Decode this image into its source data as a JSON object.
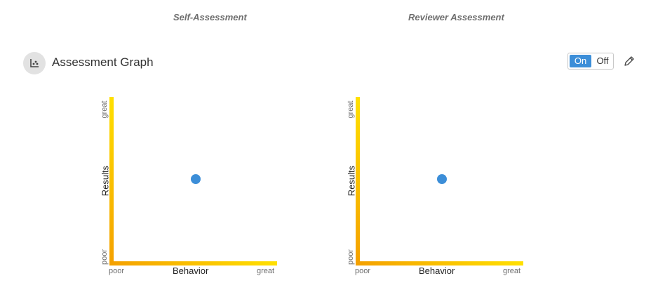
{
  "headers": {
    "self": "Self-Assessment",
    "reviewer": "Reviewer Assessment"
  },
  "section": {
    "title": "Assessment Graph",
    "icon": "scatter-chart-icon",
    "toggle": {
      "on_label": "On",
      "off_label": "Off",
      "selected": "On"
    },
    "edit_icon": "pencil-icon"
  },
  "colors": {
    "accent": "#3c8ed8",
    "axis_start": "#f4a000",
    "axis_end": "#ffe000"
  },
  "chart_data": [
    {
      "type": "scatter",
      "xlabel": "Behavior",
      "ylabel": "Results",
      "x_ticks": [
        "poor",
        "great"
      ],
      "y_ticks": [
        "poor",
        "great"
      ],
      "xlim": [
        0,
        1
      ],
      "ylim": [
        0,
        1
      ],
      "points": [
        {
          "x": 0.5,
          "y": 0.5
        }
      ]
    },
    {
      "type": "scatter",
      "xlabel": "Behavior",
      "ylabel": "Results",
      "x_ticks": [
        "poor",
        "great"
      ],
      "y_ticks": [
        "poor",
        "great"
      ],
      "xlim": [
        0,
        1
      ],
      "ylim": [
        0,
        1
      ],
      "points": [
        {
          "x": 0.5,
          "y": 0.5
        }
      ]
    }
  ]
}
